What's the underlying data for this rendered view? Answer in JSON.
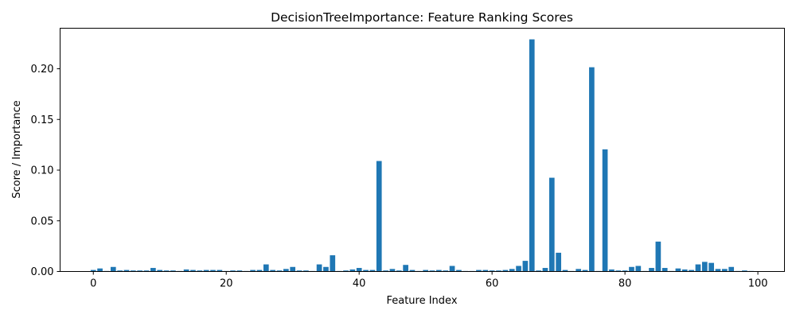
{
  "chart_data": {
    "type": "bar",
    "title": "DecisionTreeImportance: Feature Ranking Scores",
    "xlabel": "Feature Index",
    "ylabel": "Score / Importance",
    "xlim": [
      -5,
      104
    ],
    "ylim": [
      0,
      0.24
    ],
    "xticks": [
      0,
      20,
      40,
      60,
      80,
      100
    ],
    "yticks": [
      0.0,
      0.05,
      0.1,
      0.15,
      0.2
    ],
    "ytick_labels": [
      "0.00",
      "0.05",
      "0.10",
      "0.15",
      "0.20"
    ],
    "grid": false,
    "bar_color": "#1f77b4",
    "x": [
      0,
      1,
      2,
      3,
      4,
      5,
      6,
      7,
      8,
      9,
      10,
      11,
      12,
      13,
      14,
      15,
      16,
      17,
      18,
      19,
      20,
      21,
      22,
      23,
      24,
      25,
      26,
      27,
      28,
      29,
      30,
      31,
      32,
      33,
      34,
      35,
      36,
      37,
      38,
      39,
      40,
      41,
      42,
      43,
      44,
      45,
      46,
      47,
      48,
      49,
      50,
      51,
      52,
      53,
      54,
      55,
      56,
      57,
      58,
      59,
      60,
      61,
      62,
      63,
      64,
      65,
      66,
      67,
      68,
      69,
      70,
      71,
      72,
      73,
      74,
      75,
      76,
      77,
      78,
      79,
      80,
      81,
      82,
      83,
      84,
      85,
      86,
      87,
      88,
      89,
      90,
      91,
      92,
      93,
      94,
      95,
      96,
      97,
      98,
      99
    ],
    "values": [
      0.0015,
      0.003,
      0.0005,
      0.0045,
      0.001,
      0.0015,
      0.001,
      0.001,
      0.001,
      0.0035,
      0.0015,
      0.001,
      0.001,
      0.0005,
      0.002,
      0.0015,
      0.001,
      0.0015,
      0.0015,
      0.0015,
      0.0005,
      0.001,
      0.001,
      0.0005,
      0.0015,
      0.0015,
      0.007,
      0.0015,
      0.001,
      0.0025,
      0.0045,
      0.001,
      0.001,
      0.0005,
      0.007,
      0.0045,
      0.016,
      0.0005,
      0.001,
      0.002,
      0.0035,
      0.0015,
      0.0015,
      0.109,
      0.001,
      0.0025,
      0.001,
      0.0065,
      0.0015,
      0.0005,
      0.0015,
      0.001,
      0.0015,
      0.001,
      0.0055,
      0.0015,
      0.0005,
      0.0005,
      0.0015,
      0.0015,
      0.001,
      0.001,
      0.0015,
      0.0025,
      0.0055,
      0.0105,
      0.229,
      0.001,
      0.0035,
      0.0925,
      0.0185,
      0.0015,
      0.0005,
      0.0025,
      0.0015,
      0.2015,
      0.0005,
      0.1205,
      0.002,
      0.001,
      0.001,
      0.0045,
      0.0055,
      0.0005,
      0.0035,
      0.0295,
      0.0035,
      0.0005,
      0.003,
      0.002,
      0.0015,
      0.007,
      0.0095,
      0.0085,
      0.0025,
      0.0025,
      0.0045,
      0.0005,
      0.001,
      0.0005
    ]
  }
}
